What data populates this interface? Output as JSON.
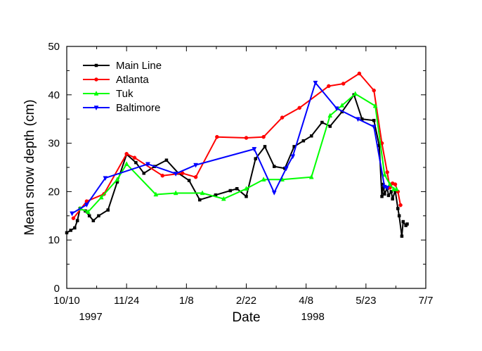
{
  "chart_data": {
    "type": "line",
    "xlabel": "Date",
    "ylabel": "Mean snow depth (cm)",
    "ylim": [
      0,
      50
    ],
    "yticks": [
      0,
      10,
      20,
      30,
      40,
      50
    ],
    "xlim": [
      "1997-10-10",
      "1998-07-07"
    ],
    "xticks": [
      {
        "date": "1997-10-10",
        "label": "10/10"
      },
      {
        "date": "1997-11-24",
        "label": "11/24"
      },
      {
        "date": "1998-01-08",
        "label": "1/8"
      },
      {
        "date": "1998-02-22",
        "label": "2/22"
      },
      {
        "date": "1998-04-08",
        "label": "4/8"
      },
      {
        "date": "1998-05-23",
        "label": "5/23"
      },
      {
        "date": "1998-07-07",
        "label": "7/7"
      }
    ],
    "year_labels": [
      {
        "date": "1997-10-28",
        "label": "1997"
      },
      {
        "date": "1998-04-13",
        "label": "1998"
      }
    ],
    "legend_position": "top-left",
    "grid": false,
    "series": [
      {
        "name": "Main Line",
        "color": "#000000",
        "marker": "square",
        "points": [
          [
            "1997-10-10",
            11.5
          ],
          [
            "1997-10-13",
            12.0
          ],
          [
            "1997-10-16",
            12.5
          ],
          [
            "1997-10-18",
            14.0
          ],
          [
            "1997-10-20",
            16.5
          ],
          [
            "1997-10-24",
            16.0
          ],
          [
            "1997-10-27",
            15.0
          ],
          [
            "1997-10-30",
            14.0
          ],
          [
            "1997-11-03",
            15.0
          ],
          [
            "1997-11-10",
            16.2
          ],
          [
            "1997-11-17",
            22.0
          ],
          [
            "1997-11-24",
            27.7
          ],
          [
            "1997-12-01",
            26.0
          ],
          [
            "1997-12-07",
            23.8
          ],
          [
            "1997-12-15",
            25.2
          ],
          [
            "1997-12-24",
            26.5
          ],
          [
            "1998-01-02",
            23.8
          ],
          [
            "1998-01-10",
            22.3
          ],
          [
            "1998-01-18",
            18.3
          ],
          [
            "1998-01-30",
            19.3
          ],
          [
            "1998-02-10",
            20.2
          ],
          [
            "1998-02-15",
            20.6
          ],
          [
            "1998-02-22",
            19.0
          ],
          [
            "1998-03-01",
            26.8
          ],
          [
            "1998-03-08",
            29.3
          ],
          [
            "1998-03-15",
            25.2
          ],
          [
            "1998-03-23",
            24.8
          ],
          [
            "1998-03-30",
            29.3
          ],
          [
            "1998-04-06",
            30.5
          ],
          [
            "1998-04-12",
            31.5
          ],
          [
            "1998-04-20",
            34.3
          ],
          [
            "1998-04-26",
            33.5
          ],
          [
            "1998-05-05",
            36.5
          ],
          [
            "1998-05-14",
            40.0
          ],
          [
            "1998-05-20",
            35.0
          ],
          [
            "1998-05-29",
            34.7
          ],
          [
            "1998-06-02",
            29.5
          ],
          [
            "1998-06-04",
            19.0
          ],
          [
            "1998-06-05",
            21.5
          ],
          [
            "1998-06-06",
            19.5
          ],
          [
            "1998-06-08",
            20.7
          ],
          [
            "1998-06-09",
            19.2
          ],
          [
            "1998-06-11",
            20.0
          ],
          [
            "1998-06-12",
            18.5
          ],
          [
            "1998-06-14",
            20.2
          ],
          [
            "1998-06-16",
            16.5
          ],
          [
            "1998-06-17",
            15.0
          ],
          [
            "1998-06-19",
            10.8
          ],
          [
            "1998-06-20",
            13.8
          ],
          [
            "1998-06-22",
            13.0
          ],
          [
            "1998-06-23",
            13.3
          ]
        ]
      },
      {
        "name": "Atlanta",
        "color": "#ff0000",
        "marker": "circle",
        "points": [
          [
            "1997-10-15",
            14.5
          ],
          [
            "1997-10-25",
            18.0
          ],
          [
            "1997-11-07",
            19.5
          ],
          [
            "1997-11-24",
            27.8
          ],
          [
            "1997-11-30",
            27.0
          ],
          [
            "1997-12-21",
            23.3
          ],
          [
            "1998-01-05",
            23.8
          ],
          [
            "1998-01-15",
            23.0
          ],
          [
            "1998-01-31",
            31.3
          ],
          [
            "1998-02-22",
            31.1
          ],
          [
            "1998-03-07",
            31.3
          ],
          [
            "1998-03-21",
            35.3
          ],
          [
            "1998-04-03",
            37.3
          ],
          [
            "1998-04-25",
            41.8
          ],
          [
            "1998-05-06",
            42.3
          ],
          [
            "1998-05-18",
            44.4
          ],
          [
            "1998-05-29",
            40.9
          ],
          [
            "1998-06-04",
            30.0
          ],
          [
            "1998-06-08",
            24.0
          ],
          [
            "1998-06-10",
            20.8
          ],
          [
            "1998-06-12",
            21.7
          ],
          [
            "1998-06-14",
            21.5
          ],
          [
            "1998-06-16",
            20.0
          ],
          [
            "1998-06-18",
            17.2
          ]
        ]
      },
      {
        "name": "Tuk",
        "color": "#00ff00",
        "marker": "triangle-up",
        "points": [
          [
            "1997-10-20",
            16.5
          ],
          [
            "1997-10-26",
            15.8
          ],
          [
            "1997-11-05",
            18.8
          ],
          [
            "1997-11-17",
            22.5
          ],
          [
            "1997-11-24",
            25.7
          ],
          [
            "1997-12-16",
            19.4
          ],
          [
            "1997-12-31",
            19.7
          ],
          [
            "1998-01-20",
            19.7
          ],
          [
            "1998-02-05",
            18.5
          ],
          [
            "1998-02-22",
            20.6
          ],
          [
            "1998-03-07",
            22.5
          ],
          [
            "1998-03-21",
            22.5
          ],
          [
            "1998-04-12",
            23.0
          ],
          [
            "1998-04-26",
            35.7
          ],
          [
            "1998-05-05",
            37.8
          ],
          [
            "1998-05-15",
            40.2
          ],
          [
            "1998-05-30",
            37.7
          ],
          [
            "1998-06-06",
            23.5
          ],
          [
            "1998-06-10",
            21.5
          ],
          [
            "1998-06-13",
            20.5
          ],
          [
            "1998-06-15",
            20.5
          ]
        ]
      },
      {
        "name": "Baltimore",
        "color": "#0000ff",
        "marker": "triangle-down",
        "points": [
          [
            "1997-10-14",
            15.5
          ],
          [
            "1997-10-25",
            17.3
          ],
          [
            "1997-11-08",
            22.8
          ],
          [
            "1997-12-10",
            25.7
          ],
          [
            "1997-12-31",
            23.7
          ],
          [
            "1998-01-15",
            25.5
          ],
          [
            "1998-02-28",
            28.8
          ],
          [
            "1998-03-15",
            19.8
          ],
          [
            "1998-03-24",
            24.8
          ],
          [
            "1998-03-29",
            27.3
          ],
          [
            "1998-04-15",
            42.5
          ],
          [
            "1998-05-01",
            37.2
          ],
          [
            "1998-05-17",
            35.0
          ],
          [
            "1998-05-29",
            33.4
          ],
          [
            "1998-06-06",
            21.0
          ],
          [
            "1998-06-08",
            20.8
          ]
        ]
      }
    ]
  }
}
